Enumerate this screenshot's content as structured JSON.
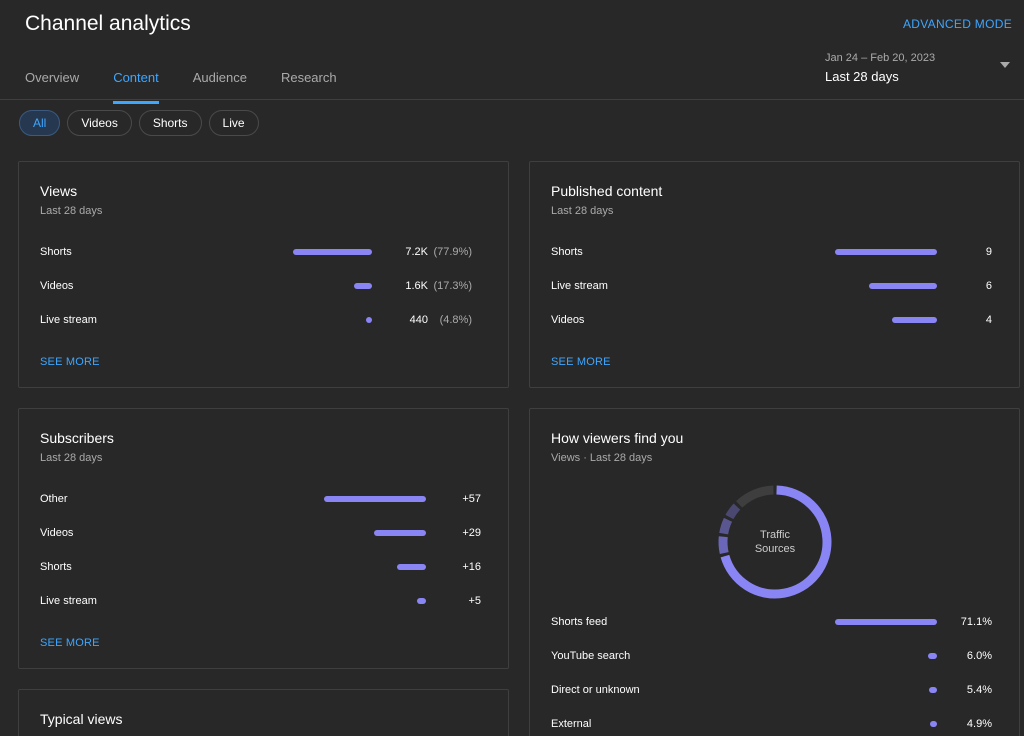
{
  "header": {
    "title": "Channel analytics",
    "advanced_mode": "ADVANCED MODE",
    "date_range": "Jan 24 – Feb 20, 2023",
    "date_label": "Last 28 days"
  },
  "tabs": [
    "Overview",
    "Content",
    "Audience",
    "Research"
  ],
  "chips": [
    "All",
    "Videos",
    "Shorts",
    "Live"
  ],
  "views": {
    "title": "Views",
    "subtitle": "Last 28 days",
    "rows": [
      {
        "label": "Shorts",
        "value": "7.2K",
        "pct": "(77.9%)",
        "ratio": 0.779
      },
      {
        "label": "Videos",
        "value": "1.6K",
        "pct": "(17.3%)",
        "ratio": 0.173
      },
      {
        "label": "Live stream",
        "value": "440",
        "pct": "(4.8%)",
        "ratio": 0.048
      }
    ],
    "see_more": "SEE MORE"
  },
  "published": {
    "title": "Published content",
    "subtitle": "Last 28 days",
    "rows": [
      {
        "label": "Shorts",
        "value": "9",
        "ratio": 1.0
      },
      {
        "label": "Live stream",
        "value": "6",
        "ratio": 0.667
      },
      {
        "label": "Videos",
        "value": "4",
        "ratio": 0.444
      }
    ],
    "see_more": "SEE MORE"
  },
  "subscribers": {
    "title": "Subscribers",
    "subtitle": "Last 28 days",
    "rows": [
      {
        "label": "Other",
        "value": "+57",
        "ratio": 1.0
      },
      {
        "label": "Videos",
        "value": "+29",
        "ratio": 0.509
      },
      {
        "label": "Shorts",
        "value": "+16",
        "ratio": 0.281
      },
      {
        "label": "Live stream",
        "value": "+5",
        "ratio": 0.088
      }
    ],
    "see_more": "SEE MORE"
  },
  "traffic": {
    "title": "How viewers find you",
    "subtitle": "Views · Last 28 days",
    "donut_label_1": "Traffic",
    "donut_label_2": "Sources",
    "rows": [
      {
        "label": "Shorts feed",
        "value": "71.1%",
        "ratio": 0.711
      },
      {
        "label": "YouTube search",
        "value": "6.0%",
        "ratio": 0.06
      },
      {
        "label": "Direct or unknown",
        "value": "5.4%",
        "ratio": 0.054
      },
      {
        "label": "External",
        "value": "4.9%",
        "ratio": 0.049
      }
    ]
  },
  "typical": {
    "title": "Typical views"
  },
  "colors": {
    "accent": "#3ea6ff",
    "bar": "#8a85f5",
    "background": "#282828"
  }
}
